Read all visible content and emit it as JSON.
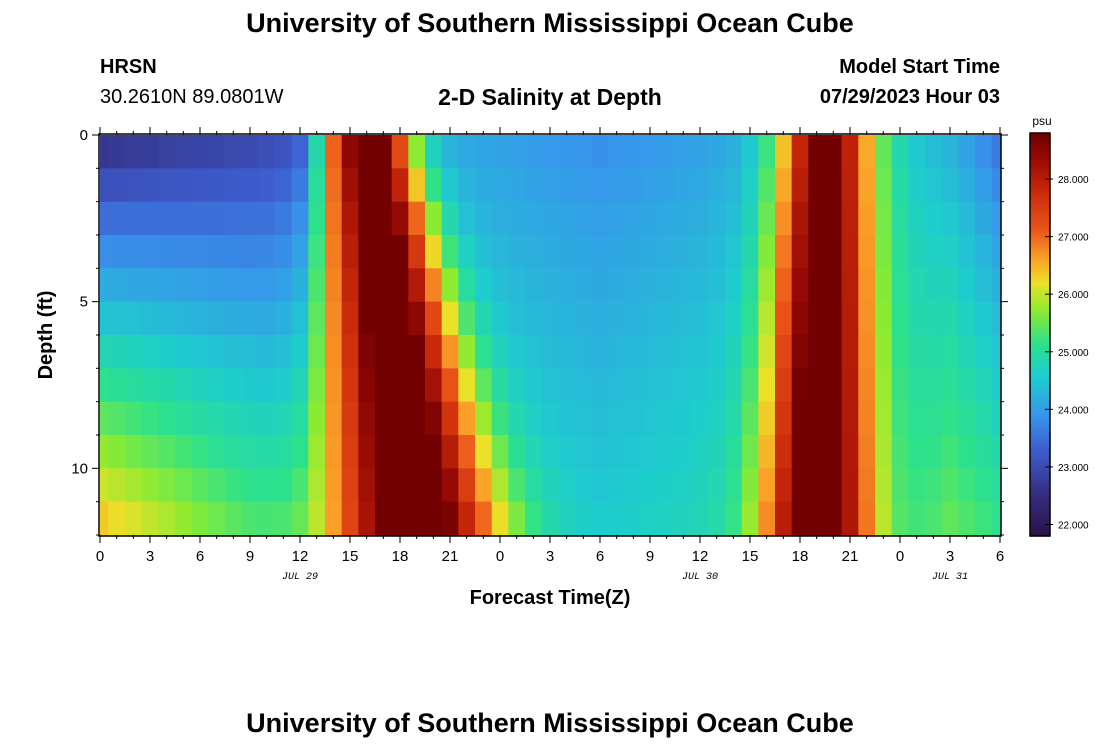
{
  "page": {
    "title": "University of Southern Mississippi Ocean Cube",
    "footer_title": "University of Southern Mississippi Ocean Cube",
    "station": "HRSN",
    "coords": "30.2610N  89.0801W",
    "subtitle": "2-D Salinity at Depth",
    "start_label": "Model Start Time",
    "start_value": "07/29/2023 Hour 03"
  },
  "chart_data": {
    "type": "heatmap",
    "title": "2-D Salinity at Depth",
    "xlabel": "Forecast Time(Z)",
    "ylabel": "Depth (ft)",
    "x_tick_labels": [
      "0",
      "3",
      "6",
      "9",
      "12",
      "15",
      "18",
      "21",
      "0",
      "3",
      "6",
      "9",
      "12",
      "15",
      "18",
      "21",
      "0",
      "3",
      "6"
    ],
    "date_labels": [
      {
        "label": "JUL 29",
        "hour": 12
      },
      {
        "label": "JUL 30",
        "hour": 36
      },
      {
        "label": "JUL 31",
        "hour": 51
      }
    ],
    "x_range_hours": [
      0,
      54
    ],
    "y_range_ft": [
      0,
      12
    ],
    "y_ticks": [
      0,
      5,
      10
    ],
    "colorbar": {
      "unit": "psu",
      "range": [
        21.8,
        28.8
      ],
      "tick_values": [
        22.0,
        23.0,
        24.0,
        25.0,
        26.0,
        27.0,
        28.0
      ],
      "tick_labels": [
        "22.000",
        "23.000",
        "24.000",
        "25.000",
        "26.000",
        "27.000",
        "28.000"
      ]
    },
    "n_time_steps": 55,
    "n_depth_levels": 12,
    "salinity_model": {
      "description": "Salinity (psu) estimated from colors: fresher water at surface early, two high-salinity tidal pulses.",
      "background": {
        "hours": [
          0,
          12,
          14,
          18,
          24,
          30,
          36,
          48,
          51,
          54
        ],
        "surface": [
          22.4,
          23.0,
          25.0,
          24.2,
          24.0,
          23.8,
          24.0,
          24.5,
          24.2,
          23.5
        ],
        "bottom": [
          26.5,
          25.0,
          25.0,
          24.8,
          24.8,
          24.6,
          24.8,
          25.0,
          25.5,
          25.2
        ]
      },
      "pulses": [
        {
          "center_surface_h": 16.2,
          "center_bottom_h": 19.0,
          "width_surface_h": 2.4,
          "width_bottom_h": 4.8,
          "amplitude": 4.8
        },
        {
          "center_surface_h": 43.5,
          "center_bottom_h": 43.0,
          "width_surface_h": 2.8,
          "width_bottom_h": 3.2,
          "amplitude": 4.7
        }
      ]
    }
  }
}
